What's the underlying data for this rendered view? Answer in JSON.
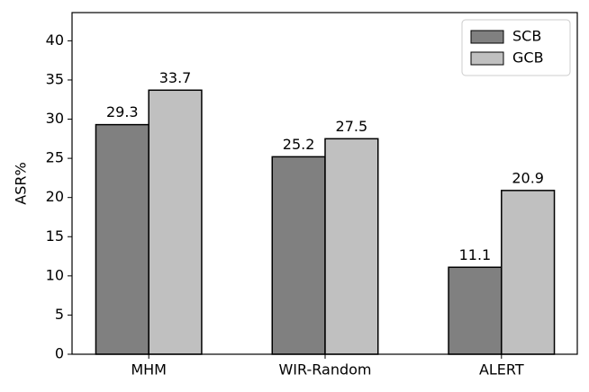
{
  "chart_data": {
    "type": "bar",
    "y_label": "ASR%",
    "categories": [
      "MHM",
      "WIR-Random",
      "ALERT"
    ],
    "series": [
      {
        "name": "SCB",
        "color": "#808080",
        "values": [
          29.3,
          25.2,
          11.1
        ]
      },
      {
        "name": "GCB",
        "color": "#c0c0c0",
        "values": [
          33.7,
          27.5,
          20.9
        ]
      }
    ],
    "ylim": [
      0,
      43.6
    ],
    "yticks": [
      0,
      5,
      10,
      15,
      20,
      25,
      30,
      35,
      40
    ],
    "legend": "upper-right",
    "grid": false
  }
}
